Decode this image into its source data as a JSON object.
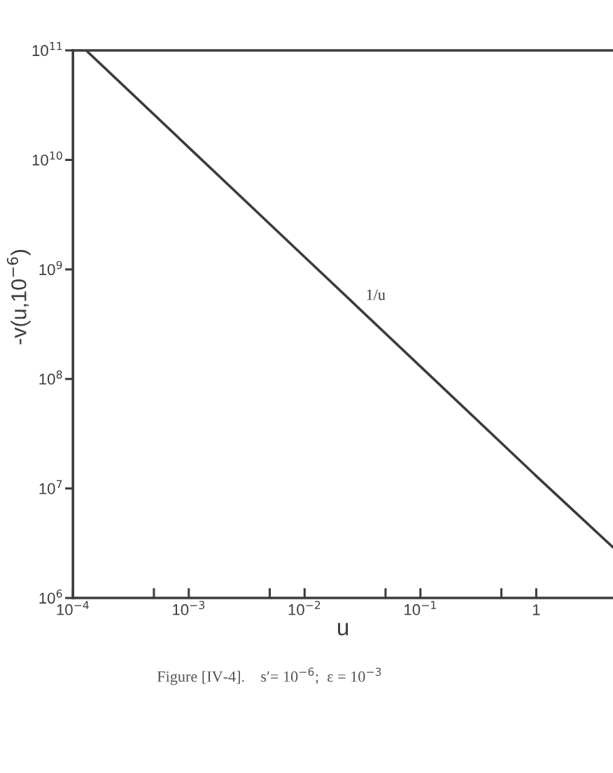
{
  "chart_data": {
    "type": "line",
    "xlabel": "u",
    "ylabel": "-v(u,10$^{−6}$)",
    "log": "xy",
    "xlim": [
      0.0001,
      4.6
    ],
    "ylim": [
      1000000,
      100000000000
    ],
    "xticks": [
      {
        "value": 0.0001,
        "label": "10$^{−4}$"
      },
      {
        "value": 0.0005,
        "label": null
      },
      {
        "value": 0.001,
        "label": "10$^{−3}$"
      },
      {
        "value": 0.005,
        "label": null
      },
      {
        "value": 0.01,
        "label": "10$^{−2}$"
      },
      {
        "value": 0.05,
        "label": null
      },
      {
        "value": 0.1,
        "label": "10$^{−1}$"
      },
      {
        "value": 0.5,
        "label": null
      },
      1
    ],
    "yticks": [
      {
        "value": 1000000,
        "label": "10$^{6}$"
      },
      {
        "value": 10000000,
        "label": "10$^{7}$"
      },
      {
        "value": 100000000,
        "label": "10$^{8}$"
      },
      {
        "value": 1000000000,
        "label": "10$^{9}$"
      },
      {
        "value": 10000000000,
        "label": "10$^{10}$"
      },
      {
        "value": 100000000000,
        "label": "10$^{11}$"
      }
    ],
    "series": [
      {
        "color": "#3c3c3c",
        "x": [
          0.00013,
          0.001,
          0.01,
          0.1,
          1,
          4.6
        ],
        "values": [
          100000000000,
          13000000000,
          1300000000,
          130000000,
          13000000,
          2900000
        ]
      }
    ],
    "annotations": [
      {
        "text": "1/u",
        "x": 0.03,
        "y": 430000000
      },
      "Figure [IV-4].    s′= 10$^{−6}$;  ε = 10$^{−3}$"
    ]
  }
}
